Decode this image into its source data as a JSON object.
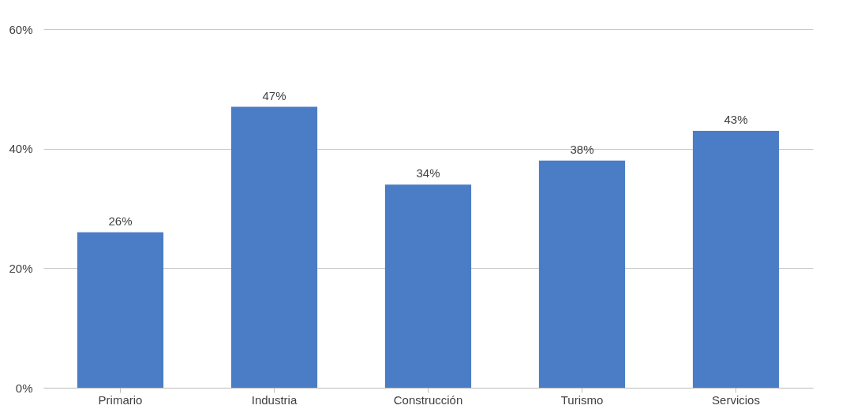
{
  "chart_data": {
    "type": "bar",
    "categories": [
      "Primario",
      "Industria",
      "Construcción",
      "Turismo",
      "Servicios"
    ],
    "values": [
      26,
      47,
      34,
      38,
      43
    ],
    "value_labels": [
      "26%",
      "47%",
      "34%",
      "38%",
      "43%"
    ],
    "color": "#4a7dc5",
    "ylim": [
      0,
      60
    ],
    "yticks": [
      {
        "value": 0,
        "label": "0%"
      },
      {
        "value": 20,
        "label": "20%"
      },
      {
        "value": 40,
        "label": "40%"
      },
      {
        "value": 60,
        "label": "60%"
      }
    ],
    "grid": "y"
  }
}
